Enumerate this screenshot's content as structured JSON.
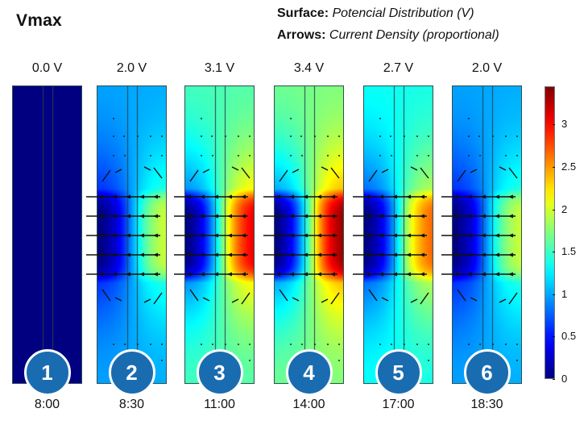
{
  "title": "Vmax",
  "legend": {
    "surface_label": "Surface:",
    "surface_value": "Potencial Distribution (V)",
    "arrows_label": "Arrows:",
    "arrows_value": "Current Density (proportional)"
  },
  "panels": [
    {
      "number": "1",
      "voltage_label": "0.0 V",
      "voltage": 0.0,
      "time": "8:00"
    },
    {
      "number": "2",
      "voltage_label": "2.0 V",
      "voltage": 2.0,
      "time": "8:30"
    },
    {
      "number": "3",
      "voltage_label": "3.1 V",
      "voltage": 3.1,
      "time": "11:00"
    },
    {
      "number": "4",
      "voltage_label": "3.4 V",
      "voltage": 3.4,
      "time": "14:00"
    },
    {
      "number": "5",
      "voltage_label": "2.7 V",
      "voltage": 2.7,
      "time": "17:00"
    },
    {
      "number": "6",
      "voltage_label": "2.0 V",
      "voltage": 2.0,
      "time": "18:30"
    }
  ],
  "colorbar": {
    "colormap": "jet",
    "range": [
      0,
      3.45
    ],
    "ticks": [
      "0",
      "0.5",
      "1",
      "1.5",
      "2",
      "2.5",
      "3"
    ],
    "tick_values": [
      0,
      0.5,
      1,
      1.5,
      2,
      2.5,
      3
    ]
  },
  "colors": {
    "badge": "#1a6cb0",
    "badge_border": "#ffffff",
    "panel_border": "#2f4f4f"
  }
}
